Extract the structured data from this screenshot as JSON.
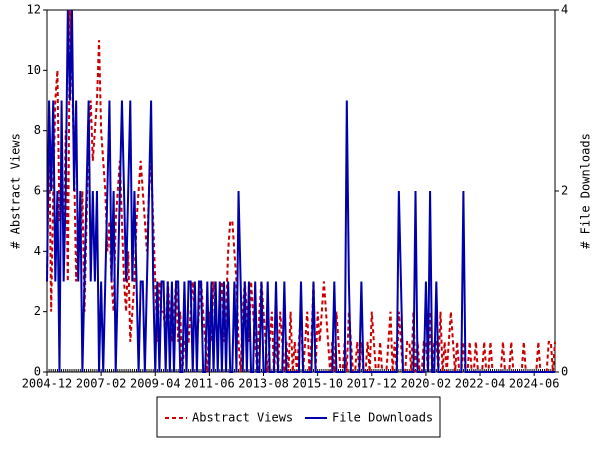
{
  "chart_data": {
    "type": "line",
    "ylabel": "# Abstract Views",
    "y2label": "# File Downloads",
    "x": [
      "2004-12",
      "2005-01",
      "2005-02",
      "2005-03",
      "2005-04",
      "2005-05",
      "2005-06",
      "2005-07",
      "2005-08",
      "2005-09",
      "2005-10",
      "2005-11",
      "2005-12",
      "2006-01",
      "2006-02",
      "2006-03",
      "2006-04",
      "2006-05",
      "2006-06",
      "2006-07",
      "2006-08",
      "2006-09",
      "2006-10",
      "2006-11",
      "2006-12",
      "2007-01",
      "2007-02",
      "2007-03",
      "2007-04",
      "2007-05",
      "2007-06",
      "2007-07",
      "2007-08",
      "2007-09",
      "2007-10",
      "2007-11",
      "2007-12",
      "2008-01",
      "2008-02",
      "2008-03",
      "2008-04",
      "2008-05",
      "2008-06",
      "2008-07",
      "2008-08",
      "2008-09",
      "2008-10",
      "2008-11",
      "2008-12",
      "2009-01",
      "2009-02",
      "2009-03",
      "2009-04",
      "2009-05",
      "2009-06",
      "2009-07",
      "2009-08",
      "2009-09",
      "2009-10",
      "2009-11",
      "2009-12",
      "2010-01",
      "2010-02",
      "2010-03",
      "2010-04",
      "2010-05",
      "2010-06",
      "2010-07",
      "2010-08",
      "2010-09",
      "2010-10",
      "2010-11",
      "2010-12",
      "2011-01",
      "2011-02",
      "2011-03",
      "2011-04",
      "2011-05",
      "2011-06",
      "2011-07",
      "2011-08",
      "2011-09",
      "2011-10",
      "2011-11",
      "2011-12",
      "2012-01",
      "2012-02",
      "2012-03",
      "2012-04",
      "2012-05",
      "2012-06",
      "2012-07",
      "2012-08",
      "2012-09",
      "2012-10",
      "2012-11",
      "2012-12",
      "2013-01",
      "2013-02",
      "2013-03",
      "2013-04",
      "2013-05",
      "2013-06",
      "2013-07",
      "2013-08",
      "2013-09",
      "2013-10",
      "2013-11",
      "2013-12",
      "2014-01",
      "2014-02",
      "2014-03",
      "2014-04",
      "2014-05",
      "2014-06",
      "2014-07",
      "2014-08",
      "2014-09",
      "2014-10",
      "2014-11",
      "2014-12",
      "2015-01",
      "2015-02",
      "2015-03",
      "2015-04",
      "2015-05",
      "2015-06",
      "2015-07",
      "2015-08",
      "2015-09",
      "2015-10",
      "2015-11",
      "2015-12",
      "2016-01",
      "2016-02",
      "2016-03",
      "2016-04",
      "2016-05",
      "2016-06",
      "2016-07",
      "2016-08",
      "2016-09",
      "2016-10",
      "2016-11",
      "2016-12",
      "2017-01",
      "2017-02",
      "2017-03",
      "2017-04",
      "2017-05",
      "2017-06",
      "2017-07",
      "2017-08",
      "2017-09",
      "2017-10",
      "2017-11",
      "2017-12",
      "2018-01",
      "2018-02",
      "2018-03",
      "2018-04",
      "2018-05",
      "2018-06",
      "2018-07",
      "2018-08",
      "2018-09",
      "2018-10",
      "2018-11",
      "2018-12",
      "2019-01",
      "2019-02",
      "2019-03",
      "2019-04",
      "2019-05",
      "2019-06",
      "2019-07",
      "2019-08",
      "2019-09",
      "2019-10",
      "2019-11",
      "2019-12",
      "2020-01",
      "2020-02",
      "2020-03",
      "2020-04",
      "2020-05",
      "2020-06",
      "2020-07",
      "2020-08",
      "2020-09",
      "2020-10",
      "2020-11",
      "2020-12",
      "2021-01",
      "2021-02",
      "2021-03",
      "2021-04",
      "2021-05",
      "2021-06",
      "2021-07",
      "2021-08",
      "2021-09",
      "2021-10",
      "2021-11",
      "2021-12",
      "2022-01",
      "2022-02",
      "2022-03",
      "2022-04",
      "2022-05",
      "2022-06",
      "2022-07",
      "2022-08",
      "2022-09",
      "2022-10",
      "2022-11",
      "2022-12",
      "2023-01",
      "2023-02",
      "2023-03",
      "2023-04",
      "2023-05",
      "2023-06",
      "2023-07",
      "2023-08",
      "2023-09",
      "2023-10",
      "2023-11",
      "2023-12",
      "2024-01",
      "2024-02",
      "2024-03",
      "2024-04",
      "2024-05",
      "2024-06",
      "2024-07",
      "2024-08",
      "2024-09",
      "2024-10",
      "2024-11",
      "2024-12",
      "2025-01",
      "2025-02",
      "2025-03",
      "2025-04"
    ],
    "xticks": [
      "2004-12",
      "2007-02",
      "2009-04",
      "2011-06",
      "2013-08",
      "2015-10",
      "2017-12",
      "2020-02",
      "2022-04",
      "2024-06"
    ],
    "ylim": [
      0,
      12
    ],
    "yticks": [
      0,
      2,
      4,
      6,
      8,
      10,
      12
    ],
    "y2lim": [
      0,
      4
    ],
    "y2ticks": [
      0,
      2,
      4
    ],
    "legend": "bottom",
    "series": [
      {
        "name": "Abstract Views",
        "color": "#cc0000",
        "dash": true,
        "values": [
          3,
          8,
          2,
          6,
          9,
          10,
          5,
          7,
          4,
          8,
          3,
          12,
          10,
          7,
          3,
          5,
          4,
          6,
          2,
          5,
          8,
          9,
          7,
          8,
          9,
          11,
          8,
          7,
          6,
          4,
          5,
          3,
          2,
          5,
          6,
          7,
          5,
          3,
          2,
          4,
          1,
          2,
          3,
          5,
          6,
          7,
          6,
          5,
          4,
          6,
          7,
          5,
          3,
          1,
          3,
          2,
          2,
          1,
          3,
          2,
          1,
          2,
          3,
          1,
          2,
          0,
          1,
          1,
          1,
          2,
          3,
          2,
          1,
          2,
          3,
          2,
          1,
          0,
          2,
          1,
          3,
          2,
          1,
          2,
          3,
          1,
          2,
          4,
          5,
          5,
          4,
          3,
          1,
          0,
          2,
          3,
          2,
          1,
          3,
          2,
          1,
          0,
          2,
          3,
          2,
          1,
          0,
          1,
          2,
          0,
          1,
          0,
          2,
          1,
          0,
          1,
          0,
          2,
          0,
          1,
          0,
          1,
          2,
          0,
          1,
          2,
          0,
          1,
          3,
          0,
          2,
          1,
          2,
          3,
          2,
          1,
          0,
          1,
          0,
          2,
          1,
          0,
          0,
          1,
          0,
          2,
          1,
          0,
          0,
          1,
          0,
          1,
          0,
          0,
          1,
          0,
          2,
          1,
          0,
          0,
          1,
          0,
          0,
          0,
          1,
          2,
          0,
          1,
          0,
          2,
          1,
          0,
          0,
          1,
          1,
          0,
          2,
          0,
          1,
          0,
          0,
          1,
          1,
          0,
          2,
          0,
          1,
          1,
          0,
          2,
          0,
          1,
          0,
          1,
          2,
          1,
          0,
          1,
          0,
          0,
          1,
          0,
          0,
          1,
          0,
          0,
          1,
          0,
          0,
          0,
          1,
          0,
          0,
          1,
          0,
          0,
          0,
          0,
          0,
          1,
          0,
          0,
          0,
          1,
          0,
          0,
          0,
          0,
          0,
          1,
          0,
          0,
          0,
          0,
          0,
          0,
          1,
          0,
          0,
          0,
          0,
          1,
          1,
          0,
          1
        ]
      },
      {
        "name": "File Downloads",
        "color": "#0000aa",
        "axis": "y2",
        "values": [
          1,
          3,
          2,
          3,
          1,
          2,
          0,
          3,
          1,
          2,
          4,
          3,
          4,
          2,
          3,
          1,
          2,
          0,
          1,
          2,
          3,
          1,
          2,
          1,
          2,
          0,
          1,
          0,
          1,
          2,
          3,
          1,
          2,
          0,
          1,
          2,
          3,
          2,
          1,
          2,
          3,
          1,
          2,
          1,
          0,
          1,
          1,
          0,
          1,
          2,
          3,
          1,
          0,
          1,
          0,
          1,
          1,
          0,
          1,
          0,
          1,
          0,
          1,
          1,
          0,
          0,
          1,
          0,
          1,
          1,
          0,
          1,
          0,
          1,
          1,
          0,
          0,
          1,
          0,
          1,
          0,
          1,
          0,
          1,
          0,
          1,
          0,
          1,
          0,
          0,
          1,
          0,
          2,
          1,
          0,
          1,
          0,
          1,
          0,
          0,
          1,
          0,
          0,
          1,
          0,
          0,
          1,
          0,
          0,
          0,
          1,
          0,
          0,
          0,
          1,
          0,
          0,
          0,
          0,
          0,
          0,
          0,
          1,
          0,
          0,
          0,
          0,
          0,
          1,
          0,
          0,
          0,
          0,
          0,
          0,
          0,
          0,
          0,
          1,
          0,
          0,
          0,
          0,
          0,
          3,
          1,
          0,
          0,
          0,
          0,
          0,
          1,
          0,
          0,
          0,
          0,
          0,
          0,
          0,
          0,
          0,
          0,
          0,
          0,
          0,
          0,
          0,
          0,
          0,
          2,
          1,
          0,
          0,
          0,
          0,
          0,
          0,
          2,
          0,
          0,
          0,
          0,
          1,
          0,
          2,
          0,
          0,
          1,
          0,
          0,
          0,
          0,
          0,
          0,
          0,
          0,
          0,
          0,
          0,
          0,
          2,
          0,
          0,
          0,
          0,
          0,
          0,
          0,
          0,
          0,
          0,
          0,
          0,
          0,
          0,
          0,
          0,
          0,
          0,
          0,
          0,
          0,
          0,
          0,
          0,
          0,
          0,
          0,
          0,
          0,
          0,
          0,
          0,
          0,
          0,
          0,
          0,
          0,
          0,
          0,
          0,
          0,
          0,
          0,
          0
        ]
      }
    ]
  }
}
